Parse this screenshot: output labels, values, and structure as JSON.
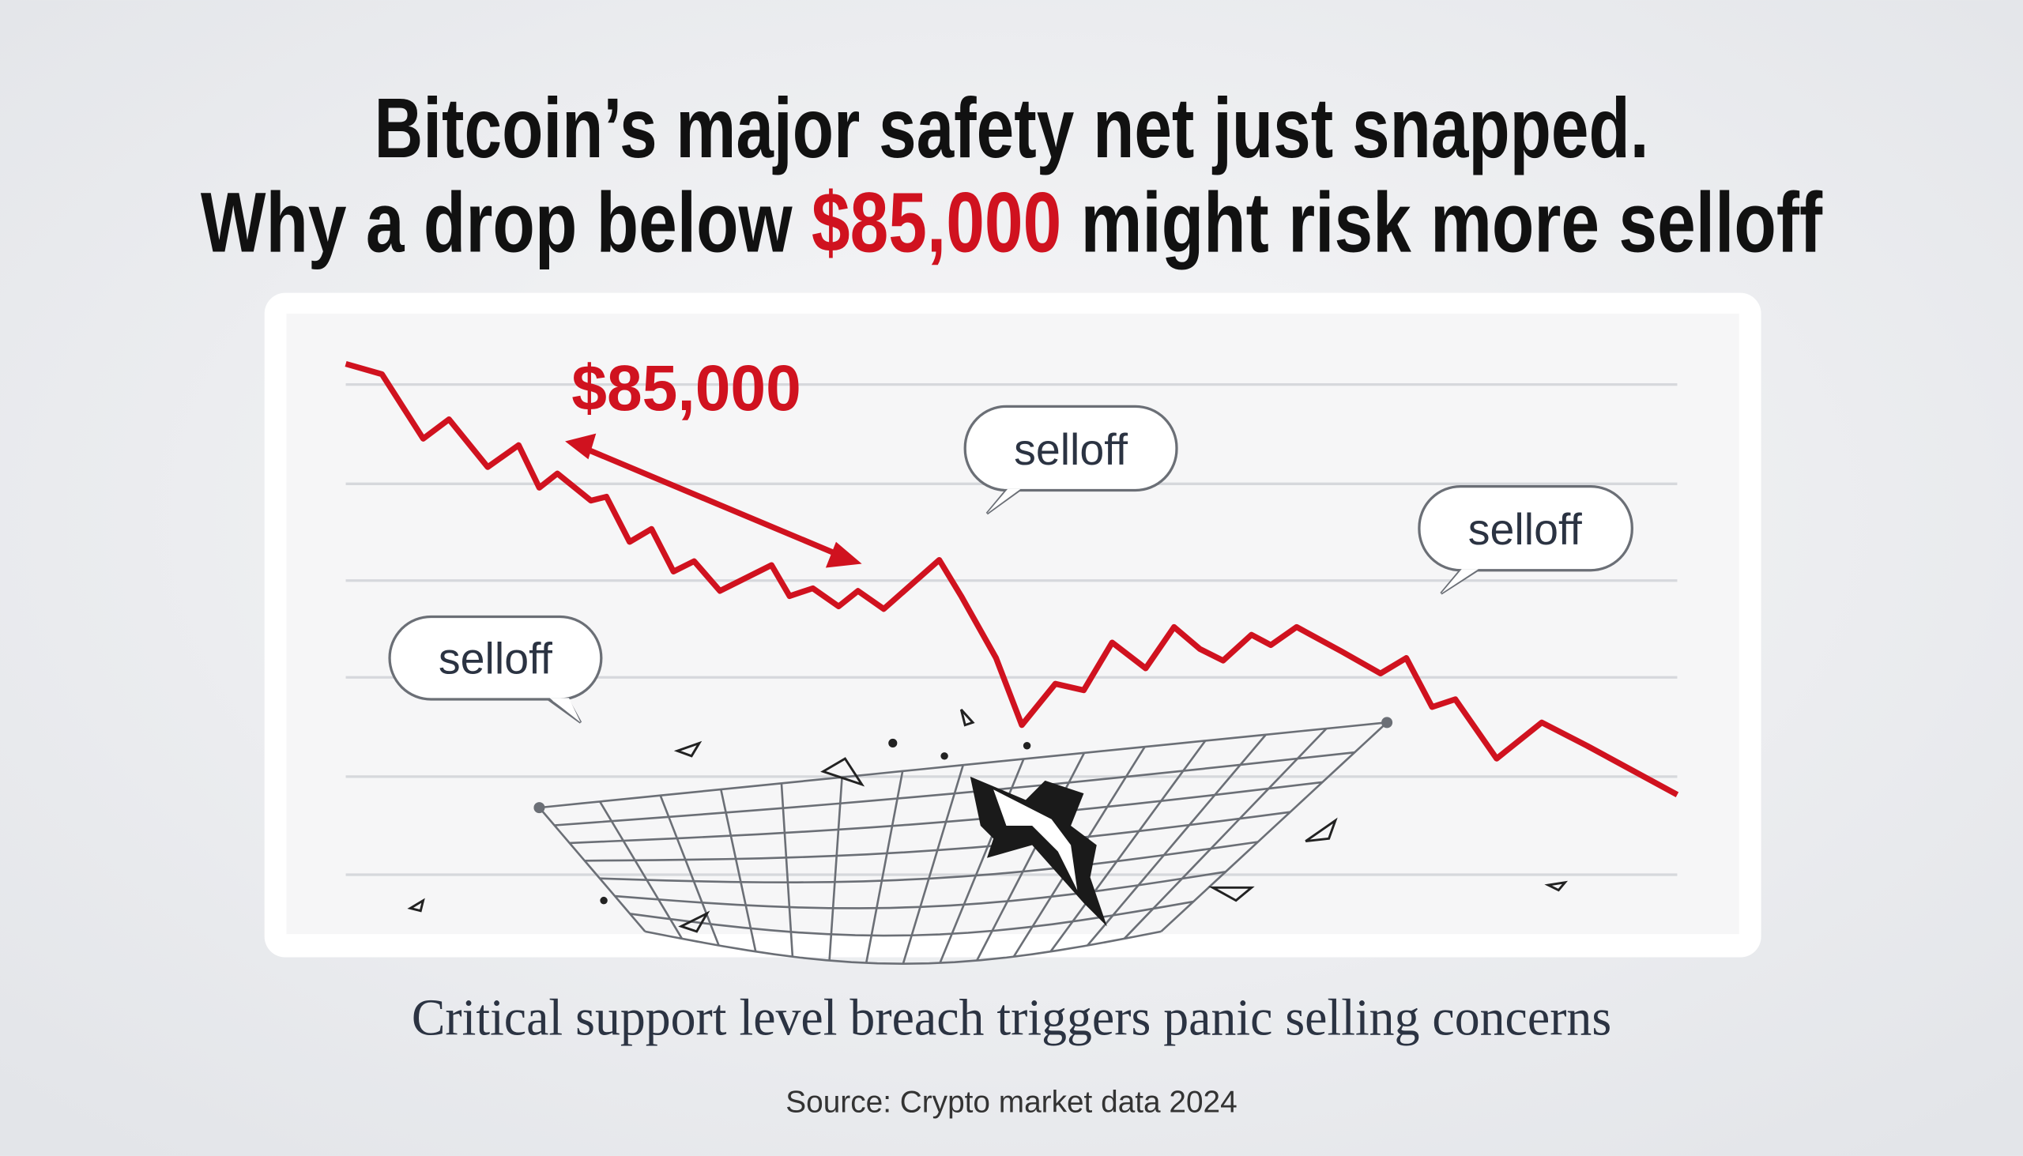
{
  "headline": {
    "line1": "Bitcoin’s major safety net just snapped.",
    "line2": {
      "before": "Why a drop below",
      "highlight": "$85,000",
      "after": "might risk more selloff"
    }
  },
  "illustration": {
    "price_label": "$85,000",
    "bubbles": [
      "selloff",
      "selloff",
      "selloff"
    ]
  },
  "caption": "Critical support level breach triggers panic selling concerns",
  "source": "Source: Crypto market data 2024"
}
